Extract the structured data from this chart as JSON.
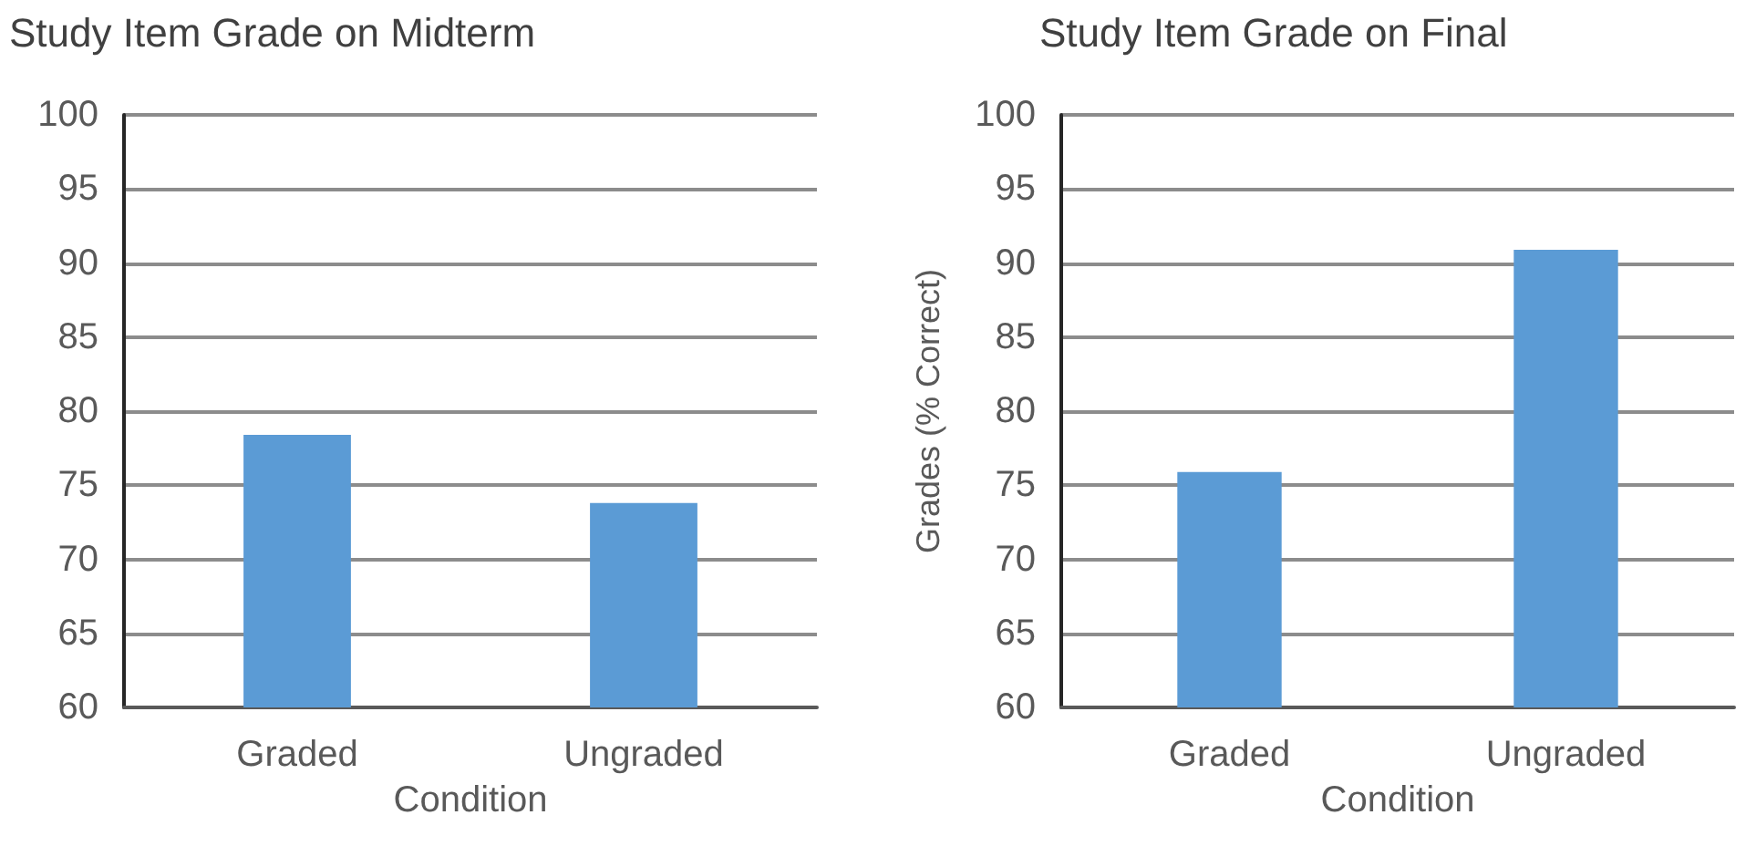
{
  "chart_data": [
    {
      "type": "bar",
      "title": "Study Item Grade on Midterm",
      "xlabel": "Condition",
      "categories": [
        "Graded",
        "Ungraded"
      ],
      "values": [
        78.4,
        73.8
      ],
      "color": "#5b9bd5",
      "ylim": [
        60,
        100
      ],
      "yticks": [
        60,
        65,
        70,
        75,
        80,
        85,
        90,
        95,
        100
      ],
      "grid": "y"
    },
    {
      "type": "bar",
      "title": "Study Item Grade on Final",
      "xlabel": "Condition",
      "ylabel": "Grades (% Correct)",
      "categories": [
        "Graded",
        "Ungraded"
      ],
      "values": [
        75.9,
        90.9
      ],
      "color": "#5b9bd5",
      "ylim": [
        60,
        100
      ],
      "yticks": [
        60,
        65,
        70,
        75,
        80,
        85,
        90,
        95,
        100
      ],
      "grid": "y"
    }
  ]
}
